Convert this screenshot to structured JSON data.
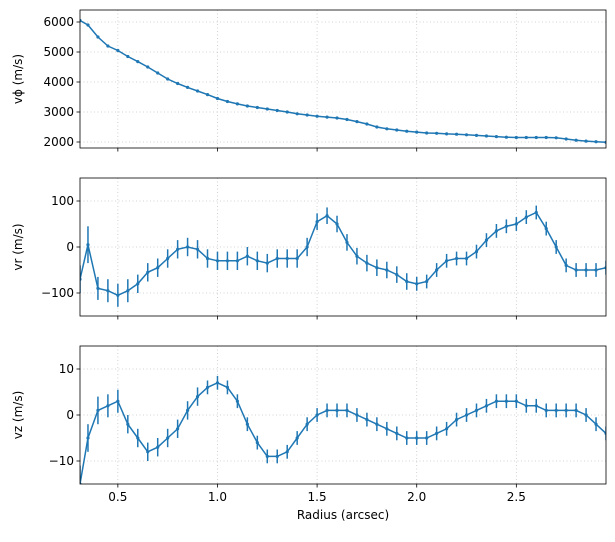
{
  "chart_data": [
    {
      "type": "line",
      "ylabel": "vϕ (m/s)",
      "color": "#1f77b4",
      "grid": true,
      "xlim": [
        0.31,
        2.95
      ],
      "ylim": [
        1800,
        6400
      ],
      "yticks": [
        2000,
        3000,
        4000,
        5000,
        6000
      ],
      "x": [
        0.31,
        0.35,
        0.4,
        0.45,
        0.5,
        0.55,
        0.6,
        0.65,
        0.7,
        0.75,
        0.8,
        0.85,
        0.9,
        0.95,
        1.0,
        1.05,
        1.1,
        1.15,
        1.2,
        1.25,
        1.3,
        1.35,
        1.4,
        1.45,
        1.5,
        1.55,
        1.6,
        1.65,
        1.7,
        1.75,
        1.8,
        1.85,
        1.9,
        1.95,
        2.0,
        2.05,
        2.1,
        2.15,
        2.2,
        2.25,
        2.3,
        2.35,
        2.4,
        2.45,
        2.5,
        2.55,
        2.6,
        2.65,
        2.7,
        2.75,
        2.8,
        2.85,
        2.9,
        2.95
      ],
      "values": [
        6050,
        5900,
        5500,
        5200,
        5050,
        4850,
        4680,
        4500,
        4300,
        4100,
        3950,
        3820,
        3700,
        3580,
        3450,
        3350,
        3270,
        3200,
        3150,
        3100,
        3050,
        3000,
        2940,
        2900,
        2860,
        2830,
        2800,
        2750,
        2680,
        2600,
        2500,
        2440,
        2400,
        2360,
        2330,
        2300,
        2290,
        2270,
        2260,
        2240,
        2220,
        2200,
        2180,
        2160,
        2150,
        2150,
        2150,
        2150,
        2140,
        2100,
        2060,
        2030,
        2010,
        1990
      ]
    },
    {
      "type": "line",
      "ylabel": "vr (m/s)",
      "color": "#1f77b4",
      "grid": true,
      "xlim": [
        0.31,
        2.95
      ],
      "ylim": [
        -150,
        150
      ],
      "yticks": [
        {
          "value": -100,
          "label": "−100"
        },
        0,
        100
      ],
      "x": [
        0.31,
        0.35,
        0.4,
        0.45,
        0.5,
        0.55,
        0.6,
        0.65,
        0.7,
        0.75,
        0.8,
        0.85,
        0.9,
        0.95,
        1.0,
        1.05,
        1.1,
        1.15,
        1.2,
        1.25,
        1.3,
        1.35,
        1.4,
        1.45,
        1.5,
        1.55,
        1.6,
        1.65,
        1.7,
        1.75,
        1.8,
        1.85,
        1.9,
        1.95,
        2.0,
        2.05,
        2.1,
        2.15,
        2.2,
        2.25,
        2.3,
        2.35,
        2.4,
        2.45,
        2.5,
        2.55,
        2.6,
        2.65,
        2.7,
        2.75,
        2.8,
        2.85,
        2.9,
        2.95
      ],
      "values": [
        -70,
        5,
        -90,
        -95,
        -105,
        -95,
        -80,
        -55,
        -45,
        -25,
        -5,
        0,
        -5,
        -25,
        -30,
        -30,
        -30,
        -20,
        -30,
        -35,
        -25,
        -25,
        -25,
        0,
        55,
        68,
        50,
        10,
        -20,
        -35,
        -45,
        -50,
        -60,
        -75,
        -80,
        -75,
        -50,
        -30,
        -25,
        -25,
        -10,
        15,
        35,
        45,
        50,
        65,
        75,
        40,
        0,
        -40,
        -50,
        -50,
        -50,
        -45
      ],
      "errors": [
        30,
        40,
        25,
        25,
        25,
        25,
        20,
        20,
        20,
        20,
        20,
        20,
        20,
        20,
        20,
        20,
        20,
        20,
        20,
        20,
        20,
        20,
        20,
        20,
        18,
        18,
        18,
        18,
        18,
        18,
        18,
        18,
        18,
        18,
        15,
        15,
        15,
        15,
        15,
        15,
        15,
        15,
        15,
        15,
        15,
        15,
        15,
        15,
        15,
        15,
        15,
        15,
        15,
        15
      ]
    },
    {
      "type": "line",
      "ylabel": "vz (m/s)",
      "xlabel": "Radius (arcsec)",
      "color": "#1f77b4",
      "grid": true,
      "xlim": [
        0.31,
        2.95
      ],
      "ylim": [
        -15,
        15
      ],
      "yticks": [
        {
          "value": -10,
          "label": "−10"
        },
        0,
        10
      ],
      "xticks": [
        0.5,
        {
          "value": 1,
          "label": "1.0"
        },
        1.5,
        {
          "value": 2,
          "label": "2.0"
        },
        2.5
      ],
      "x": [
        0.31,
        0.35,
        0.4,
        0.45,
        0.5,
        0.55,
        0.6,
        0.65,
        0.7,
        0.75,
        0.8,
        0.85,
        0.9,
        0.95,
        1.0,
        1.05,
        1.1,
        1.15,
        1.2,
        1.25,
        1.3,
        1.35,
        1.4,
        1.45,
        1.5,
        1.55,
        1.6,
        1.65,
        1.7,
        1.75,
        1.8,
        1.85,
        1.9,
        1.95,
        2.0,
        2.05,
        2.1,
        2.15,
        2.2,
        2.25,
        2.3,
        2.35,
        2.4,
        2.45,
        2.5,
        2.55,
        2.6,
        2.65,
        2.7,
        2.75,
        2.8,
        2.85,
        2.9,
        2.95
      ],
      "values": [
        -15,
        -5,
        1,
        2,
        3,
        -2,
        -5,
        -8,
        -7,
        -5,
        -3,
        1,
        4,
        6,
        7,
        6,
        3,
        -2,
        -6,
        -9,
        -9,
        -8,
        -5,
        -2,
        0,
        1,
        1,
        1,
        0,
        -1,
        -2,
        -3,
        -4,
        -5,
        -5,
        -5,
        -4,
        -3,
        -1,
        0,
        1,
        2,
        3,
        3,
        3,
        2,
        2,
        1,
        1,
        1,
        1,
        0,
        -2,
        -4
      ],
      "errors": [
        4,
        3,
        3,
        2.5,
        2.5,
        2,
        2,
        2,
        2,
        2,
        2,
        2,
        2,
        1.5,
        1.5,
        1.5,
        1.5,
        1.5,
        1.5,
        1.5,
        1.5,
        1.5,
        1.5,
        1.5,
        1.5,
        1.5,
        1.5,
        1.5,
        1.5,
        1.5,
        1.5,
        1.5,
        1.5,
        1.5,
        1.5,
        1.5,
        1.5,
        1.5,
        1.5,
        1.5,
        1.5,
        1.5,
        1.5,
        1.5,
        1.5,
        1.5,
        1.5,
        1.5,
        1.5,
        1.5,
        1.5,
        1.5,
        1.5,
        1.5
      ]
    }
  ]
}
